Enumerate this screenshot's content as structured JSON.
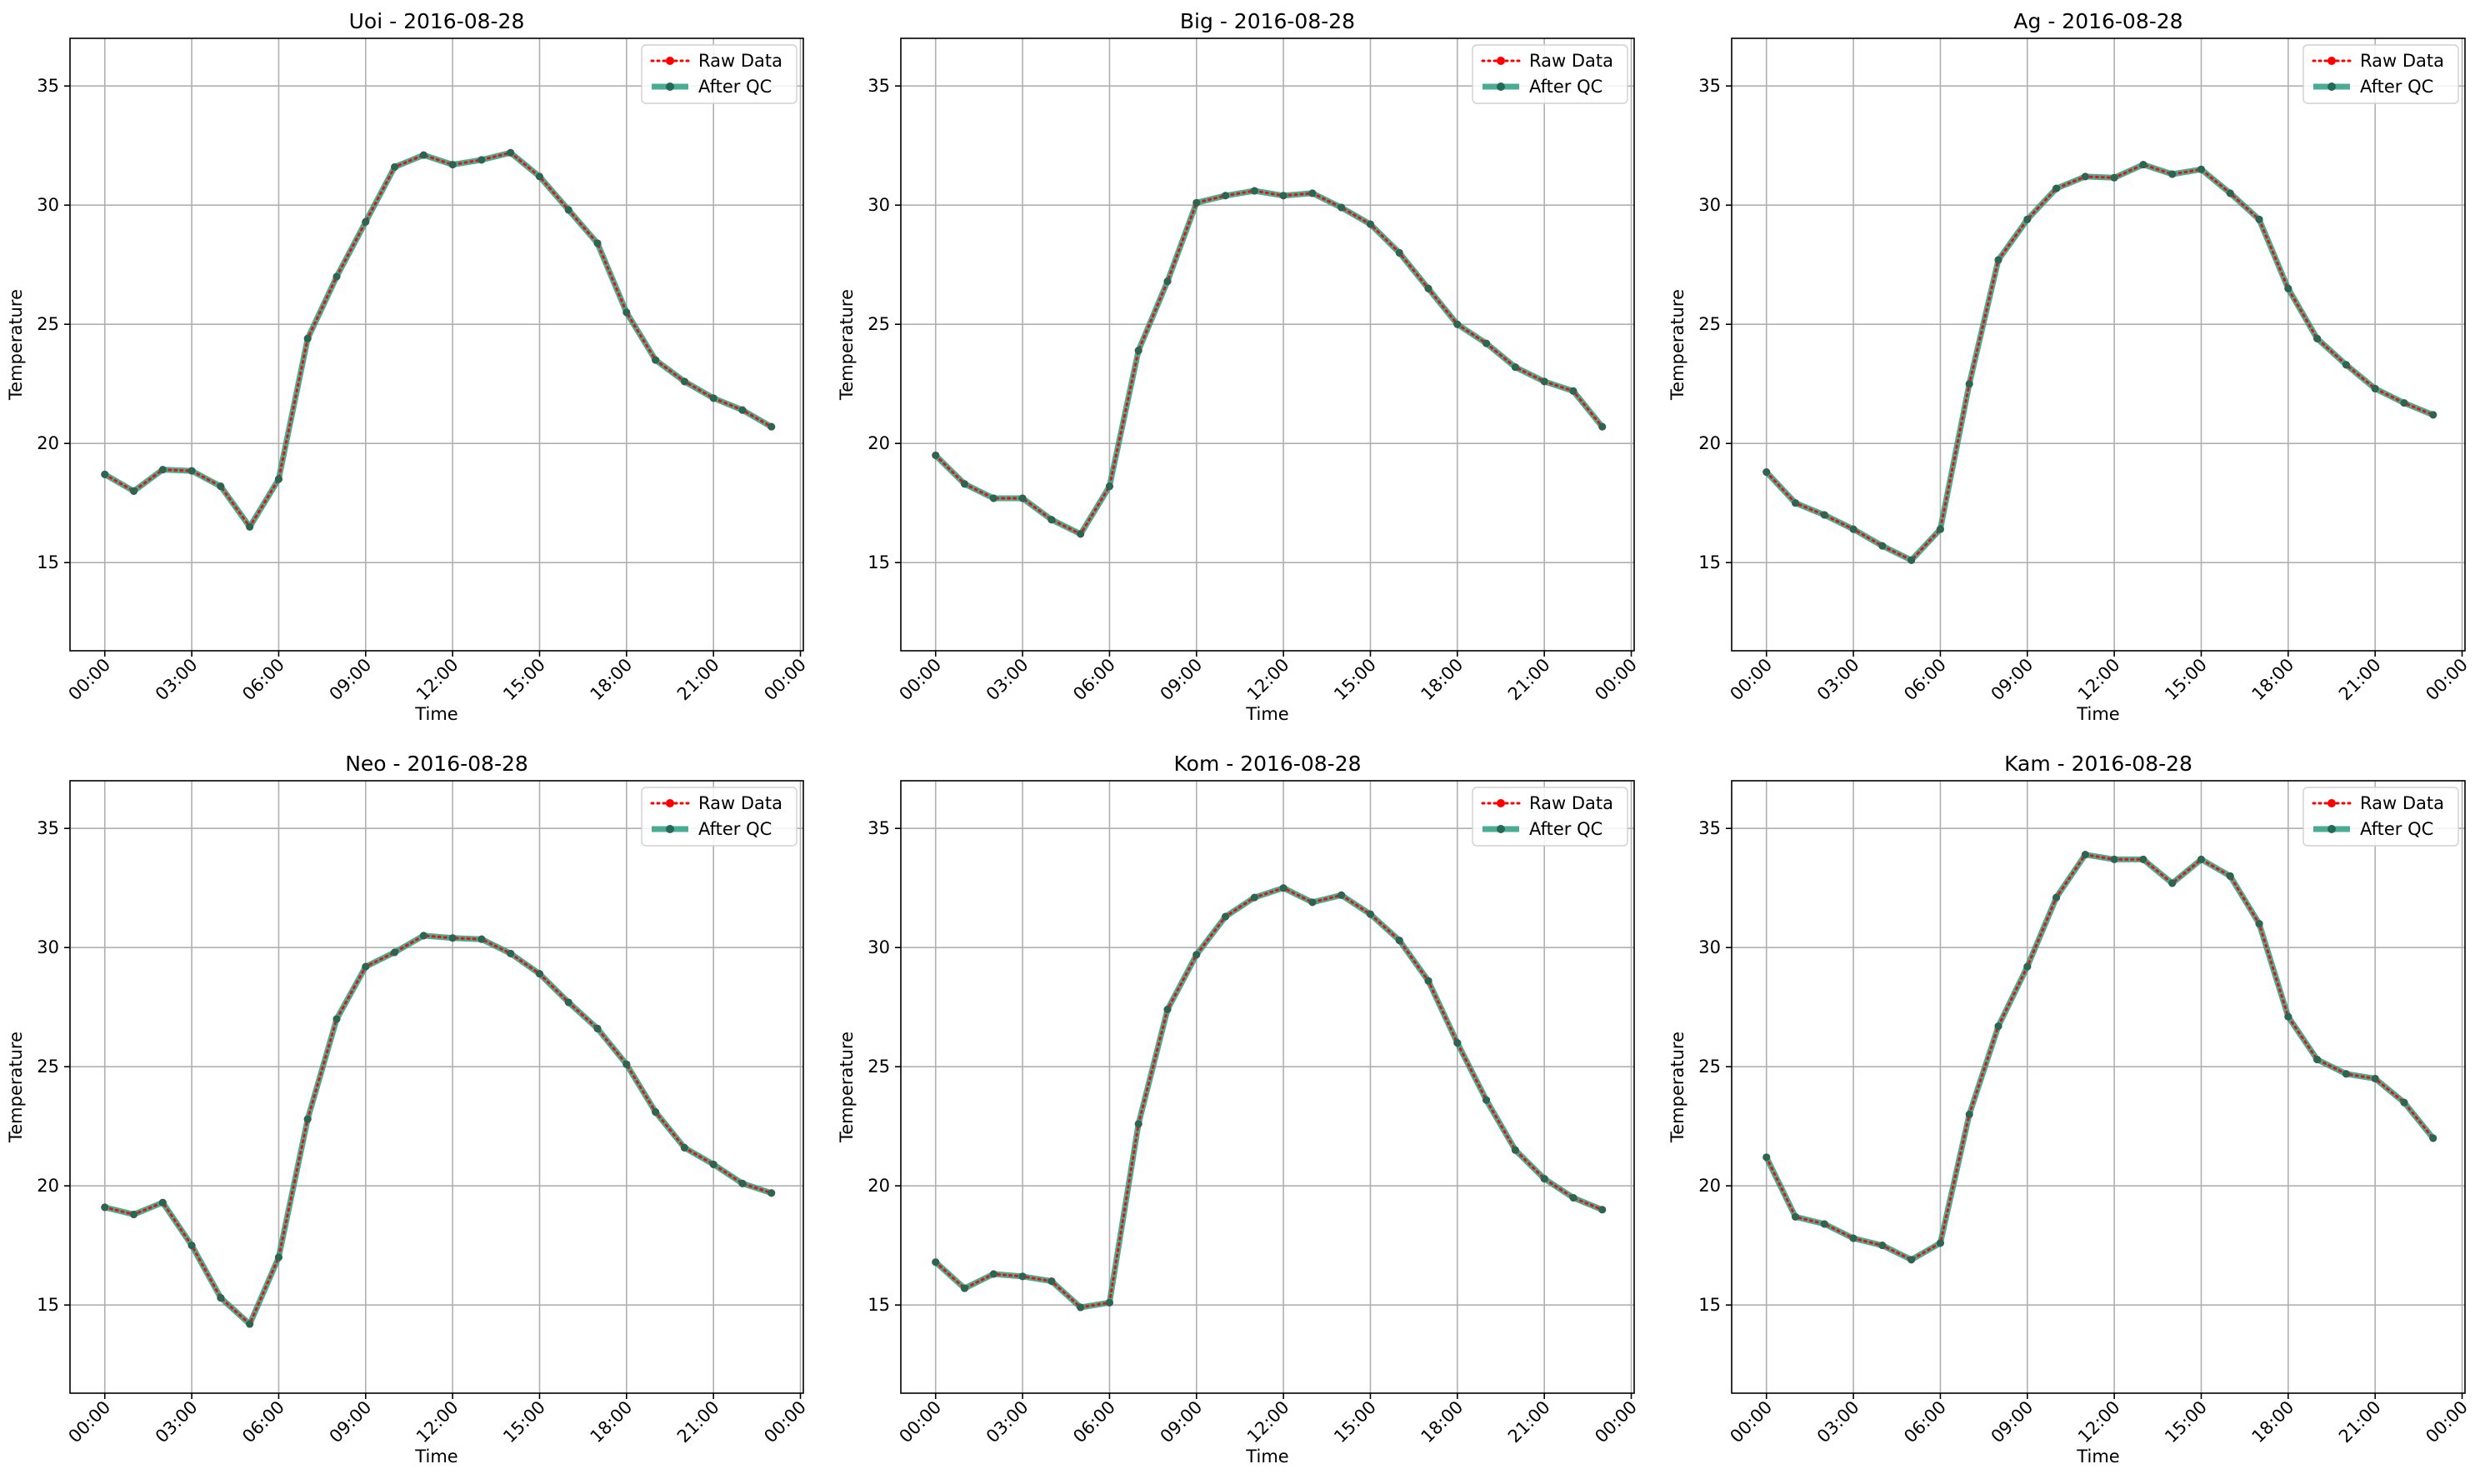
{
  "chart_data": [
    {
      "type": "line",
      "title": "Uoi - 2016-08-28",
      "xlabel": "Time",
      "ylabel": "Temperature",
      "x": [
        "00:00",
        "01:00",
        "02:00",
        "03:00",
        "04:00",
        "05:00",
        "06:00",
        "07:00",
        "08:00",
        "09:00",
        "10:00",
        "11:00",
        "12:00",
        "13:00",
        "14:00",
        "15:00",
        "16:00",
        "17:00",
        "18:00",
        "19:00",
        "20:00",
        "21:00",
        "22:00",
        "23:00"
      ],
      "xticks": [
        "00:00",
        "03:00",
        "06:00",
        "09:00",
        "12:00",
        "15:00",
        "18:00",
        "21:00",
        "00:00"
      ],
      "yticks": [
        15,
        20,
        25,
        30,
        35
      ],
      "ylim": [
        11.3,
        37
      ],
      "xlim": [
        -1.2,
        24.1
      ],
      "grid": true,
      "legend_position": "top-right",
      "series": [
        {
          "name": "Raw Data",
          "color": "#ff0000",
          "values": [
            18.7,
            18.0,
            18.9,
            18.85,
            18.2,
            16.5,
            18.5,
            24.4,
            27.0,
            29.3,
            31.6,
            32.1,
            31.7,
            31.9,
            32.2,
            31.2,
            29.8,
            28.4,
            25.5,
            23.5,
            22.6,
            21.9,
            21.4,
            20.7
          ]
        },
        {
          "name": "After QC",
          "color": "#2a9d7f",
          "values": [
            18.7,
            18.0,
            18.9,
            18.85,
            18.2,
            16.5,
            18.5,
            24.4,
            27.0,
            29.3,
            31.6,
            32.1,
            31.7,
            31.9,
            32.2,
            31.2,
            29.8,
            28.4,
            25.5,
            23.5,
            22.6,
            21.9,
            21.4,
            20.7
          ]
        }
      ]
    },
    {
      "type": "line",
      "title": "Big - 2016-08-28",
      "xlabel": "Time",
      "ylabel": "Temperature",
      "x": [
        "00:00",
        "01:00",
        "02:00",
        "03:00",
        "04:00",
        "05:00",
        "06:00",
        "07:00",
        "08:00",
        "09:00",
        "10:00",
        "11:00",
        "12:00",
        "13:00",
        "14:00",
        "15:00",
        "16:00",
        "17:00",
        "18:00",
        "19:00",
        "20:00",
        "21:00",
        "22:00",
        "23:00"
      ],
      "xticks": [
        "00:00",
        "03:00",
        "06:00",
        "09:00",
        "12:00",
        "15:00",
        "18:00",
        "21:00",
        "00:00"
      ],
      "yticks": [
        15,
        20,
        25,
        30,
        35
      ],
      "ylim": [
        11.3,
        37
      ],
      "xlim": [
        -1.2,
        24.1
      ],
      "grid": true,
      "legend_position": "top-right",
      "series": [
        {
          "name": "Raw Data",
          "color": "#ff0000",
          "values": [
            19.5,
            18.3,
            17.7,
            17.7,
            16.8,
            16.2,
            18.2,
            23.9,
            26.8,
            30.1,
            30.4,
            30.6,
            30.4,
            30.5,
            29.9,
            29.2,
            28.0,
            26.5,
            25.0,
            24.2,
            23.2,
            22.6,
            22.2,
            20.7
          ]
        },
        {
          "name": "After QC",
          "color": "#2a9d7f",
          "values": [
            19.5,
            18.3,
            17.7,
            17.7,
            16.8,
            16.2,
            18.2,
            23.9,
            26.8,
            30.1,
            30.4,
            30.6,
            30.4,
            30.5,
            29.9,
            29.2,
            28.0,
            26.5,
            25.0,
            24.2,
            23.2,
            22.6,
            22.2,
            20.7
          ]
        }
      ]
    },
    {
      "type": "line",
      "title": "Ag - 2016-08-28",
      "xlabel": "Time",
      "ylabel": "Temperature",
      "x": [
        "00:00",
        "01:00",
        "02:00",
        "03:00",
        "04:00",
        "05:00",
        "06:00",
        "07:00",
        "08:00",
        "09:00",
        "10:00",
        "11:00",
        "12:00",
        "13:00",
        "14:00",
        "15:00",
        "16:00",
        "17:00",
        "18:00",
        "19:00",
        "20:00",
        "21:00",
        "22:00",
        "23:00"
      ],
      "xticks": [
        "00:00",
        "03:00",
        "06:00",
        "09:00",
        "12:00",
        "15:00",
        "18:00",
        "21:00",
        "00:00"
      ],
      "yticks": [
        15,
        20,
        25,
        30,
        35
      ],
      "ylim": [
        11.3,
        37
      ],
      "xlim": [
        -1.2,
        24.1
      ],
      "grid": true,
      "legend_position": "top-right",
      "series": [
        {
          "name": "Raw Data",
          "color": "#ff0000",
          "values": [
            18.8,
            17.5,
            17.0,
            16.4,
            15.7,
            15.1,
            16.4,
            22.5,
            27.7,
            29.4,
            30.7,
            31.2,
            31.15,
            31.7,
            31.3,
            31.5,
            30.5,
            29.4,
            26.5,
            24.4,
            23.3,
            22.3,
            21.7,
            21.2
          ]
        },
        {
          "name": "After QC",
          "color": "#2a9d7f",
          "values": [
            18.8,
            17.5,
            17.0,
            16.4,
            15.7,
            15.1,
            16.4,
            22.5,
            27.7,
            29.4,
            30.7,
            31.2,
            31.15,
            31.7,
            31.3,
            31.5,
            30.5,
            29.4,
            26.5,
            24.4,
            23.3,
            22.3,
            21.7,
            21.2
          ]
        }
      ]
    },
    {
      "type": "line",
      "title": "Neo - 2016-08-28",
      "xlabel": "Time",
      "ylabel": "Temperature",
      "x": [
        "00:00",
        "01:00",
        "02:00",
        "03:00",
        "04:00",
        "05:00",
        "06:00",
        "07:00",
        "08:00",
        "09:00",
        "10:00",
        "11:00",
        "12:00",
        "13:00",
        "14:00",
        "15:00",
        "16:00",
        "17:00",
        "18:00",
        "19:00",
        "20:00",
        "21:00",
        "22:00",
        "23:00"
      ],
      "xticks": [
        "00:00",
        "03:00",
        "06:00",
        "09:00",
        "12:00",
        "15:00",
        "18:00",
        "21:00",
        "00:00"
      ],
      "yticks": [
        15,
        20,
        25,
        30,
        35
      ],
      "ylim": [
        11.3,
        37
      ],
      "xlim": [
        -1.2,
        24.1
      ],
      "grid": true,
      "legend_position": "top-right",
      "series": [
        {
          "name": "Raw Data",
          "color": "#ff0000",
          "values": [
            19.1,
            18.8,
            19.3,
            17.5,
            15.3,
            14.2,
            17.0,
            22.8,
            27.0,
            29.2,
            29.8,
            30.5,
            30.4,
            30.35,
            29.75,
            28.9,
            27.7,
            26.6,
            25.1,
            23.1,
            21.6,
            20.9,
            20.1,
            19.7
          ]
        },
        {
          "name": "After QC",
          "color": "#2a9d7f",
          "values": [
            19.1,
            18.8,
            19.3,
            17.5,
            15.3,
            14.2,
            17.0,
            22.8,
            27.0,
            29.2,
            29.8,
            30.5,
            30.4,
            30.35,
            29.75,
            28.9,
            27.7,
            26.6,
            25.1,
            23.1,
            21.6,
            20.9,
            20.1,
            19.7
          ]
        }
      ]
    },
    {
      "type": "line",
      "title": "Kom - 2016-08-28",
      "xlabel": "Time",
      "ylabel": "Temperature",
      "x": [
        "00:00",
        "01:00",
        "02:00",
        "03:00",
        "04:00",
        "05:00",
        "06:00",
        "07:00",
        "08:00",
        "09:00",
        "10:00",
        "11:00",
        "12:00",
        "13:00",
        "14:00",
        "15:00",
        "16:00",
        "17:00",
        "18:00",
        "19:00",
        "20:00",
        "21:00",
        "22:00",
        "23:00"
      ],
      "xticks": [
        "00:00",
        "03:00",
        "06:00",
        "09:00",
        "12:00",
        "15:00",
        "18:00",
        "21:00",
        "00:00"
      ],
      "yticks": [
        15,
        20,
        25,
        30,
        35
      ],
      "ylim": [
        11.3,
        37
      ],
      "xlim": [
        -1.2,
        24.1
      ],
      "grid": true,
      "legend_position": "top-right",
      "series": [
        {
          "name": "Raw Data",
          "color": "#ff0000",
          "values": [
            16.8,
            15.7,
            16.3,
            16.2,
            16.0,
            14.9,
            15.1,
            22.6,
            27.4,
            29.7,
            31.3,
            32.1,
            32.5,
            31.9,
            32.2,
            31.4,
            30.3,
            28.6,
            26.0,
            23.6,
            21.5,
            20.3,
            19.5,
            19.0
          ]
        },
        {
          "name": "After QC",
          "color": "#2a9d7f",
          "values": [
            16.8,
            15.7,
            16.3,
            16.2,
            16.0,
            14.9,
            15.1,
            22.6,
            27.4,
            29.7,
            31.3,
            32.1,
            32.5,
            31.9,
            32.2,
            31.4,
            30.3,
            28.6,
            26.0,
            23.6,
            21.5,
            20.3,
            19.5,
            19.0
          ]
        }
      ]
    },
    {
      "type": "line",
      "title": "Kam - 2016-08-28",
      "xlabel": "Time",
      "ylabel": "Temperature",
      "x": [
        "00:00",
        "01:00",
        "02:00",
        "03:00",
        "04:00",
        "05:00",
        "06:00",
        "07:00",
        "08:00",
        "09:00",
        "10:00",
        "11:00",
        "12:00",
        "13:00",
        "14:00",
        "15:00",
        "16:00",
        "17:00",
        "18:00",
        "19:00",
        "20:00",
        "21:00",
        "22:00",
        "23:00"
      ],
      "xticks": [
        "00:00",
        "03:00",
        "06:00",
        "09:00",
        "12:00",
        "15:00",
        "18:00",
        "21:00",
        "00:00"
      ],
      "yticks": [
        15,
        20,
        25,
        30,
        35
      ],
      "ylim": [
        11.3,
        37
      ],
      "xlim": [
        -1.2,
        24.1
      ],
      "grid": true,
      "legend_position": "top-right",
      "series": [
        {
          "name": "Raw Data",
          "color": "#ff0000",
          "values": [
            21.2,
            18.7,
            18.4,
            17.8,
            17.5,
            16.9,
            17.6,
            23.0,
            26.7,
            29.2,
            32.1,
            33.9,
            33.7,
            33.7,
            32.7,
            33.7,
            33.0,
            31.0,
            27.1,
            25.3,
            24.7,
            24.5,
            23.5,
            22.0
          ]
        },
        {
          "name": "After QC",
          "color": "#2a9d7f",
          "values": [
            21.2,
            18.7,
            18.4,
            17.8,
            17.5,
            16.9,
            17.6,
            23.0,
            26.7,
            29.2,
            32.1,
            33.9,
            33.7,
            33.7,
            32.7,
            33.7,
            33.0,
            31.0,
            27.1,
            25.3,
            24.7,
            24.5,
            23.5,
            22.0
          ]
        }
      ]
    }
  ]
}
